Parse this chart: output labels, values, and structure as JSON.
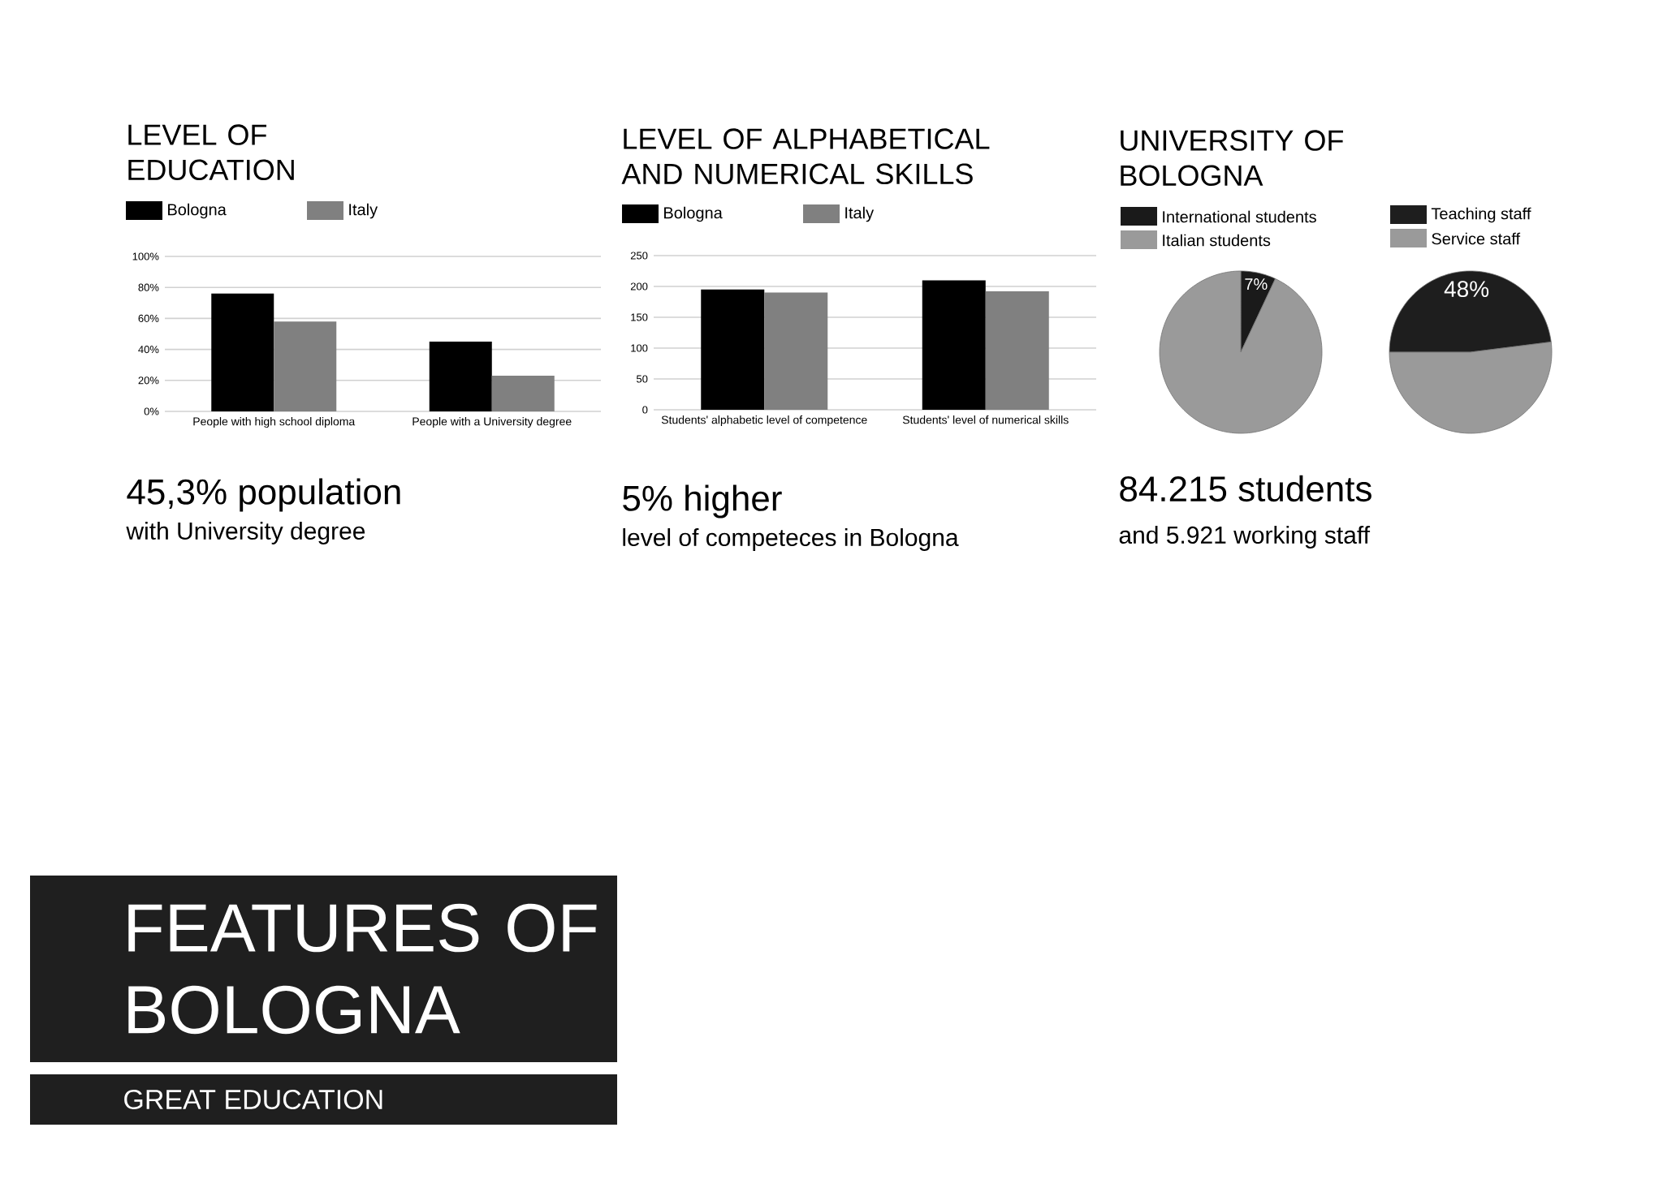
{
  "chart_data": [
    {
      "type": "bar",
      "title": "LEVEL OF EDUCATION",
      "categories": [
        "People with high school diploma",
        "People with a University degree"
      ],
      "series": [
        {
          "name": "Bologna",
          "color": "#000000",
          "values": [
            76,
            45
          ]
        },
        {
          "name": "Italy",
          "color": "#808080",
          "values": [
            58,
            23
          ]
        }
      ],
      "ylim": [
        0,
        100
      ],
      "yticks": [
        {
          "value": 0,
          "label": "0%"
        },
        {
          "value": 20,
          "label": "20%"
        },
        {
          "value": 40,
          "label": "40%"
        },
        {
          "value": 60,
          "label": "60%"
        },
        {
          "value": 80,
          "label": "80%"
        },
        {
          "value": 100,
          "label": "100%"
        }
      ],
      "grid": "y",
      "legend": "top left",
      "annotations": [
        "45,3% population",
        "with University degree"
      ]
    },
    {
      "type": "bar",
      "title": "LEVEL OF ALPHABETICAL AND NUMERICAL SKILLS",
      "categories": [
        "Students' alphabetic level of competence",
        "Students' level of numerical skills"
      ],
      "series": [
        {
          "name": "Bologna",
          "color": "#000000",
          "values": [
            195,
            210
          ]
        },
        {
          "name": "Italy",
          "color": "#808080",
          "values": [
            190,
            192
          ]
        }
      ],
      "ylim": [
        0,
        250
      ],
      "yticks": [
        0,
        50,
        100,
        150,
        200,
        250
      ],
      "grid": "y",
      "legend": "top left",
      "annotations": [
        "5% higher",
        "level of competeces in Bologna"
      ]
    },
    {
      "type": "pie",
      "title": "UNIVERSITY OF BOLOGNA",
      "categories": [
        "International students",
        "Italian students"
      ],
      "values": [
        7,
        93
      ],
      "colors": [
        "#1a1a1a",
        "#9a9a9a"
      ],
      "value_labels": [
        "7%",
        null
      ],
      "legend": "top left",
      "annotations": [
        "84.215 students",
        "and 5.921 working staff"
      ]
    },
    {
      "type": "pie",
      "categories": [
        "Teaching staff",
        "Service staff"
      ],
      "values": [
        48,
        52
      ],
      "colors": [
        "#1e1e1e",
        "#9a9a9a"
      ],
      "value_labels": [
        "48%",
        null
      ],
      "legend": "top left"
    },
    {
      "type": "other",
      "title": "FEATURES OF BOLOGNA",
      "subtitle": "GREAT EDUCATION"
    }
  ]
}
